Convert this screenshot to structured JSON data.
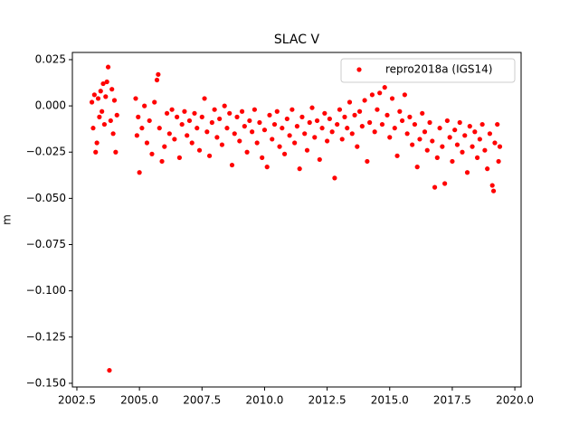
{
  "chart_data": {
    "type": "scatter",
    "title": "SLAC V",
    "ylabel": "m",
    "xlim": [
      2002.32,
      2020.25
    ],
    "ylim": [
      -0.152,
      0.0289
    ],
    "xticks": [
      2002.5,
      {
        "value": 2005,
        "label": "2005.0"
      },
      2007.5,
      {
        "value": 2010,
        "label": "2010.0"
      },
      2012.5,
      {
        "value": 2015,
        "label": "2015.0"
      },
      2017.5,
      {
        "value": 2020,
        "label": "2020.0"
      }
    ],
    "yticks": [
      0.025,
      {
        "value": 0,
        "label": "0.000"
      },
      {
        "value": -0.025,
        "label": "−0.025"
      },
      {
        "value": -0.05,
        "label": "−0.050"
      },
      {
        "value": -0.075,
        "label": "−0.075"
      },
      {
        "value": -0.1,
        "label": "−0.100"
      },
      {
        "value": -0.125,
        "label": "−0.125"
      },
      {
        "value": -0.15,
        "label": "−0.150"
      }
    ],
    "legend": "upper right",
    "series": [
      {
        "name": "repro2018a (IGS14)",
        "color": "#ff0000",
        "x": [
          2003.1,
          2003.15,
          2003.2,
          2003.25,
          2003.3,
          2003.35,
          2003.4,
          2003.45,
          2003.5,
          2003.55,
          2003.6,
          2003.65,
          2003.7,
          2003.75,
          2003.8,
          2003.85,
          2003.9,
          2003.95,
          2004.0,
          2004.05,
          2004.1,
          2004.85,
          2004.9,
          2004.95,
          2005.0,
          2005.1,
          2005.2,
          2005.3,
          2005.4,
          2005.5,
          2005.6,
          2005.7,
          2005.75,
          2005.8,
          2005.9,
          2006.0,
          2006.1,
          2006.2,
          2006.3,
          2006.4,
          2006.5,
          2006.6,
          2006.7,
          2006.8,
          2006.9,
          2007.0,
          2007.1,
          2007.2,
          2007.3,
          2007.4,
          2007.5,
          2007.6,
          2007.7,
          2007.8,
          2007.9,
          2008.0,
          2008.1,
          2008.2,
          2008.3,
          2008.4,
          2008.5,
          2008.6,
          2008.7,
          2008.8,
          2008.9,
          2009.0,
          2009.1,
          2009.2,
          2009.3,
          2009.4,
          2009.5,
          2009.6,
          2009.7,
          2009.8,
          2009.9,
          2010.0,
          2010.1,
          2010.2,
          2010.3,
          2010.4,
          2010.5,
          2010.6,
          2010.7,
          2010.8,
          2010.9,
          2011.0,
          2011.1,
          2011.2,
          2011.3,
          2011.4,
          2011.5,
          2011.6,
          2011.7,
          2011.8,
          2011.9,
          2012.0,
          2012.1,
          2012.2,
          2012.3,
          2012.4,
          2012.5,
          2012.6,
          2012.7,
          2012.8,
          2012.9,
          2013.0,
          2013.1,
          2013.2,
          2013.3,
          2013.4,
          2013.5,
          2013.6,
          2013.7,
          2013.8,
          2013.9,
          2014.0,
          2014.1,
          2014.2,
          2014.3,
          2014.4,
          2014.5,
          2014.6,
          2014.7,
          2014.8,
          2014.9,
          2015.0,
          2015.1,
          2015.2,
          2015.3,
          2015.4,
          2015.5,
          2015.6,
          2015.7,
          2015.8,
          2015.9,
          2016.0,
          2016.1,
          2016.2,
          2016.3,
          2016.4,
          2016.5,
          2016.6,
          2016.7,
          2016.8,
          2016.9,
          2017.0,
          2017.1,
          2017.2,
          2017.3,
          2017.4,
          2017.5,
          2017.6,
          2017.7,
          2017.8,
          2017.9,
          2018.0,
          2018.1,
          2018.2,
          2018.3,
          2018.4,
          2018.5,
          2018.6,
          2018.7,
          2018.8,
          2018.9,
          2019.0,
          2019.1,
          2019.15,
          2019.2,
          2019.3,
          2019.35,
          2019.4
        ],
        "values": [
          0.002,
          -0.012,
          0.006,
          -0.025,
          -0.02,
          0.004,
          -0.006,
          0.008,
          -0.003,
          0.012,
          -0.01,
          0.005,
          0.013,
          0.021,
          -0.143,
          -0.008,
          0.009,
          -0.015,
          0.003,
          -0.025,
          -0.005,
          0.004,
          -0.016,
          -0.006,
          -0.036,
          -0.012,
          0.0,
          -0.02,
          -0.008,
          -0.026,
          0.002,
          0.014,
          0.017,
          -0.012,
          -0.03,
          -0.022,
          -0.004,
          -0.015,
          -0.002,
          -0.018,
          -0.006,
          -0.028,
          -0.01,
          -0.003,
          -0.016,
          -0.008,
          -0.02,
          -0.004,
          -0.012,
          -0.024,
          -0.006,
          0.004,
          -0.014,
          -0.027,
          -0.009,
          -0.002,
          -0.017,
          -0.007,
          -0.021,
          0.0,
          -0.012,
          -0.004,
          -0.032,
          -0.015,
          -0.006,
          -0.019,
          -0.003,
          -0.011,
          -0.025,
          -0.008,
          -0.014,
          -0.002,
          -0.02,
          -0.009,
          -0.028,
          -0.013,
          -0.033,
          -0.005,
          -0.018,
          -0.01,
          -0.003,
          -0.022,
          -0.012,
          -0.026,
          -0.007,
          -0.016,
          -0.002,
          -0.02,
          -0.011,
          -0.034,
          -0.006,
          -0.015,
          -0.024,
          -0.009,
          -0.001,
          -0.017,
          -0.008,
          -0.029,
          -0.012,
          -0.004,
          -0.019,
          -0.007,
          -0.014,
          -0.039,
          -0.01,
          -0.002,
          -0.018,
          -0.006,
          -0.012,
          0.002,
          -0.015,
          -0.005,
          -0.022,
          -0.003,
          -0.011,
          0.003,
          -0.03,
          -0.009,
          0.006,
          -0.014,
          -0.002,
          0.007,
          -0.01,
          0.01,
          -0.005,
          -0.017,
          0.004,
          -0.012,
          -0.027,
          -0.003,
          -0.008,
          0.006,
          -0.015,
          -0.006,
          -0.021,
          -0.01,
          -0.033,
          -0.018,
          -0.004,
          -0.014,
          -0.024,
          -0.009,
          -0.019,
          -0.044,
          -0.028,
          -0.012,
          -0.022,
          -0.042,
          -0.008,
          -0.017,
          -0.03,
          -0.013,
          -0.021,
          -0.009,
          -0.025,
          -0.016,
          -0.036,
          -0.011,
          -0.022,
          -0.014,
          -0.028,
          -0.018,
          -0.01,
          -0.024,
          -0.034,
          -0.015,
          -0.043,
          -0.046,
          -0.02,
          -0.01,
          -0.03,
          -0.022
        ]
      }
    ]
  }
}
